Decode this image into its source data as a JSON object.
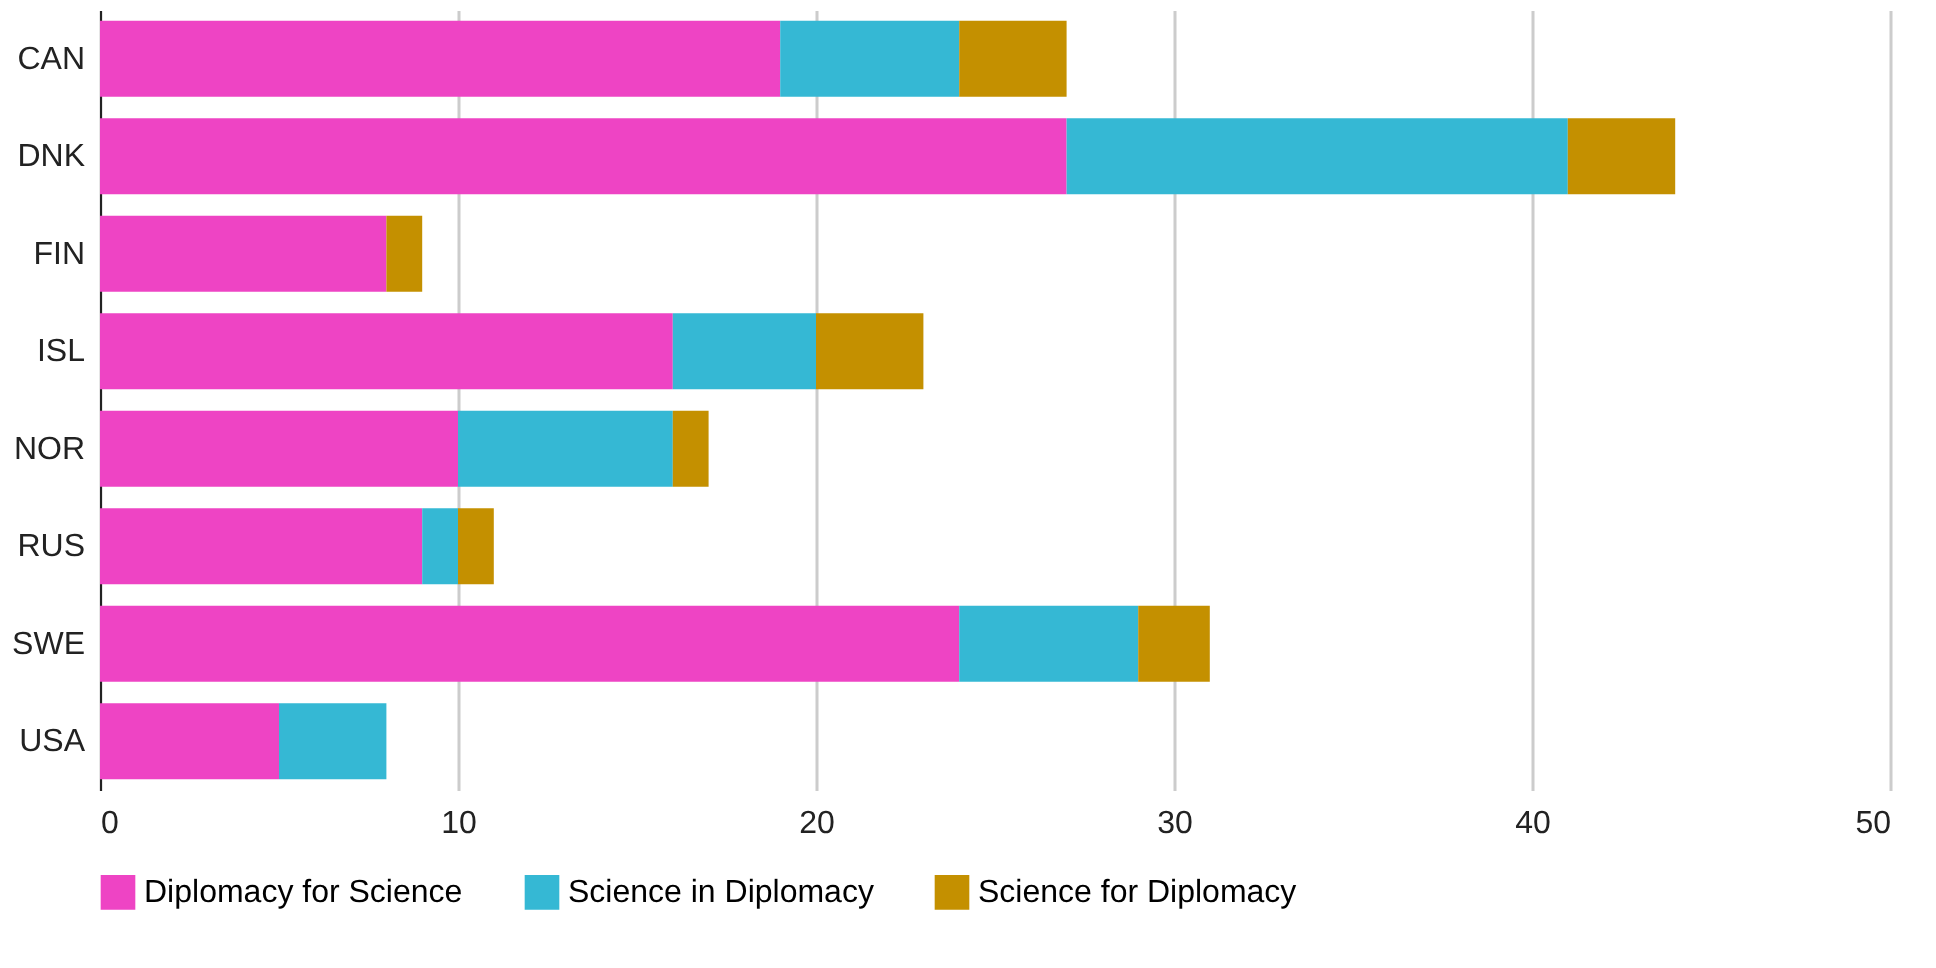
{
  "chart_data": {
    "type": "bar",
    "orientation": "horizontal",
    "stacked": true,
    "categories": [
      "CAN",
      "DNK",
      "FIN",
      "ISL",
      "NOR",
      "RUS",
      "SWE",
      "USA"
    ],
    "series": [
      {
        "name": "Diplomacy for Science",
        "color": "#ee44c4",
        "values": [
          19,
          27,
          8,
          16,
          10,
          9,
          24,
          5
        ]
      },
      {
        "name": "Science in Diplomacy",
        "color": "#35b8d4",
        "values": [
          5,
          14,
          0,
          4,
          6,
          1,
          5,
          3
        ]
      },
      {
        "name": "Science for Diplomacy",
        "color": "#c49000",
        "values": [
          3,
          3,
          1,
          3,
          1,
          1,
          2,
          0
        ]
      }
    ],
    "xlim": [
      0,
      50
    ],
    "xticks": [
      0,
      10,
      20,
      30,
      40,
      50
    ],
    "grid": "x",
    "legend": "bottom"
  }
}
